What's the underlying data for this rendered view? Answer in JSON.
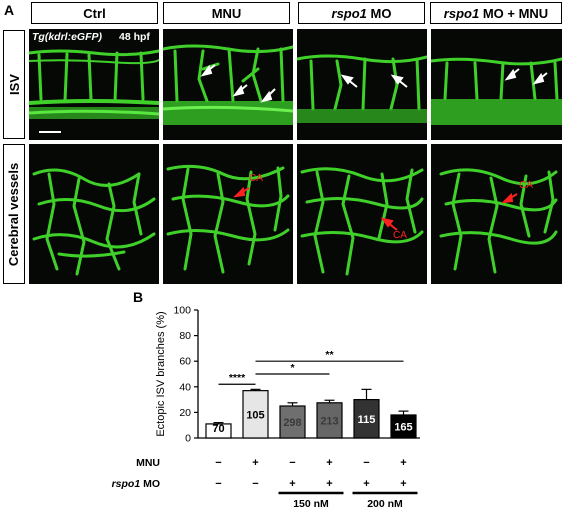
{
  "panel_a": {
    "letter": "A",
    "columns": [
      {
        "pre": "",
        "italic": "",
        "post": "Ctrl"
      },
      {
        "pre": "",
        "italic": "",
        "post": "MNU"
      },
      {
        "pre": "",
        "italic": "rspo1",
        "post": " MO"
      },
      {
        "pre": "",
        "italic": "rspo1",
        "post": " MO + MNU"
      }
    ],
    "rows": [
      "ISV",
      "Cerebral vessels"
    ],
    "transgene_label": "Tg(kdrl:eGFP)",
    "stage_label": "48 hpf",
    "ca_label": "CA",
    "colors": {
      "vessel": "#3fd12a",
      "background": "#060806",
      "arrow_white": "#ffffff",
      "arrow_red": "#ff2020"
    }
  },
  "panel_b": {
    "letter": "B",
    "chart_data": {
      "type": "bar",
      "ylabel": "Ectopic ISV branches (%)",
      "ylim": [
        0,
        100
      ],
      "yticks": [
        "0",
        "20",
        "40",
        "60",
        "80",
        "100"
      ],
      "bars": [
        {
          "value": 11,
          "error": 1,
          "n": "70",
          "color": "#ffffff",
          "n_color": "#000000"
        },
        {
          "value": 37,
          "error": 1,
          "n": "105",
          "color": "#e6e6e6",
          "n_color": "#000000"
        },
        {
          "value": 25,
          "error": 2.5,
          "n": "298",
          "color": "#6f6f6f",
          "n_color": "#3a3a3a"
        },
        {
          "value": 27.5,
          "error": 2,
          "n": "213",
          "color": "#666666",
          "n_color": "#3a3a3a"
        },
        {
          "value": 30,
          "error": 8,
          "n": "115",
          "color": "#333333",
          "n_color": "#ffffff"
        },
        {
          "value": 18,
          "error": 3,
          "n": "165",
          "color": "#000000",
          "n_color": "#ffffff"
        }
      ],
      "significance": [
        {
          "from": 0,
          "to": 1,
          "label": "****",
          "y": 42
        },
        {
          "from": 1,
          "to": 3,
          "label": "*",
          "y": 50
        },
        {
          "from": 1,
          "to": 5,
          "label": "**",
          "y": 60
        }
      ],
      "conditions": [
        {
          "label": "MNU",
          "italic": "",
          "post": "",
          "signs": [
            "−",
            "+",
            "−",
            "+",
            "−",
            "+"
          ]
        },
        {
          "label": "",
          "italic": "rspo1",
          "post": " MO",
          "signs": [
            "−",
            "−",
            "+",
            "+",
            "+",
            "+"
          ]
        }
      ],
      "dose_groups": [
        {
          "label": "150 nM",
          "from": 2,
          "to": 3
        },
        {
          "label": "200 nM",
          "from": 4,
          "to": 5
        }
      ]
    }
  }
}
